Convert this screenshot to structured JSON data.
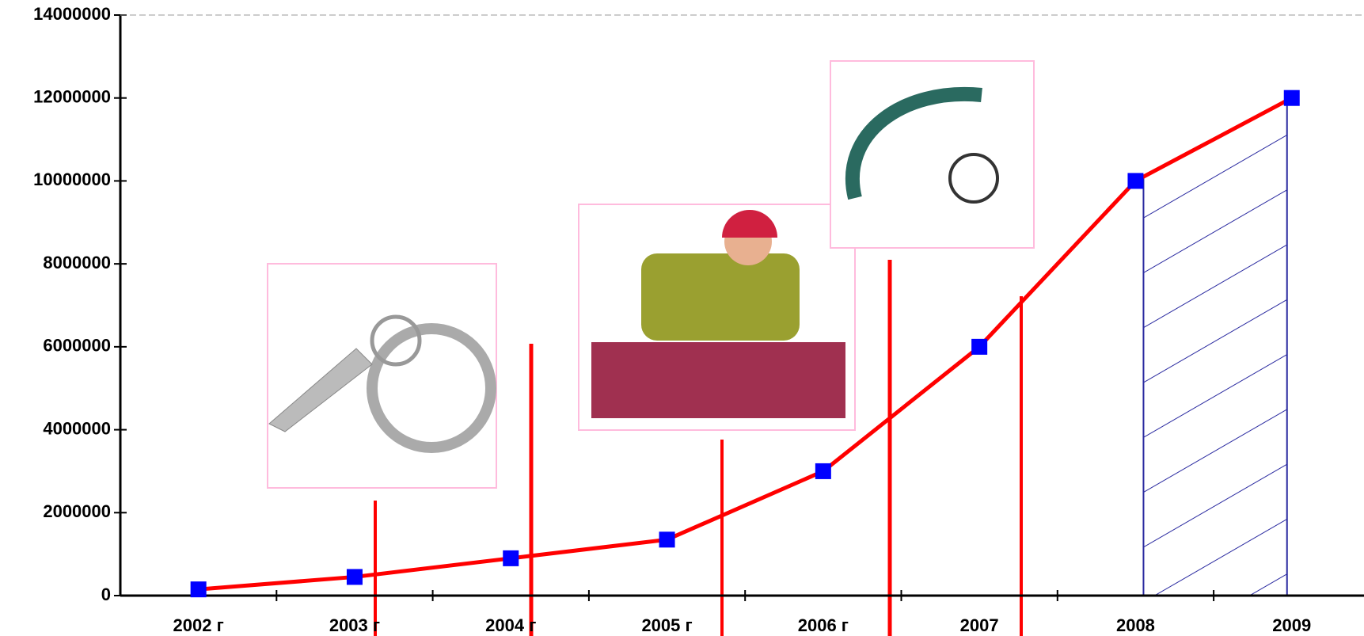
{
  "chart_data": {
    "type": "line",
    "categories": [
      "2002 г",
      "2003 г",
      "2004 г",
      "2005 г",
      "2006 г",
      "2007",
      "2008",
      "2009"
    ],
    "series": [
      {
        "color": "#ff0000",
        "marker_color": "#0000ff",
        "values": [
          150000,
          450000,
          900000,
          1350000,
          3000000,
          6000000,
          10000000,
          12000000
        ]
      }
    ],
    "ylim": [
      0,
      14000000
    ],
    "yticks": [
      0,
      2000000,
      4000000,
      6000000,
      8000000,
      10000000,
      12000000,
      14000000
    ]
  }
}
